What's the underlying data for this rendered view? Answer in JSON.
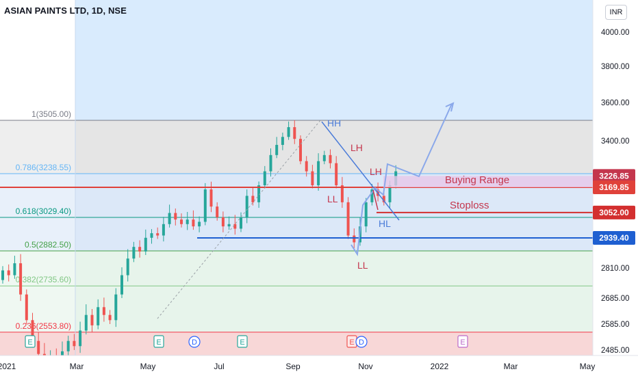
{
  "header": {
    "title": "ASIAN PAINTS LTD, 1D, NSE",
    "currency": "INR"
  },
  "colors": {
    "up": "#26a69a",
    "down": "#ef5350",
    "fib_top": "#e0e0e0",
    "fib_mid": "#d6e4f7",
    "fib_low": "#e3f2e8",
    "fib_red": "#f8d7d7",
    "blue_zone": "#d9ebfd",
    "annot_blue": "#4a7bd8",
    "annot_red": "#c4364d",
    "buy_fill": "#e7c7e8"
  },
  "chart_data": {
    "type": "candlestick",
    "title": "ASIAN PAINTS LTD, 1D, NSE",
    "price_axis": {
      "ticks": [
        4000.0,
        3800.0,
        3600.0,
        3400.0,
        2810.0,
        2685.0,
        2585.0,
        2485.0
      ],
      "tick_labels": [
        "4000.00",
        "3800.00",
        "3600.00",
        "3400.00",
        "2810.00",
        "2685.00",
        "2585.00",
        "2485.00"
      ],
      "price_tags": [
        {
          "value": 3226.85,
          "label": "3226.85",
          "color": "#c4364d"
        },
        {
          "value": 3169.85,
          "label": "3169.85",
          "color": "#e0413a"
        },
        {
          "value": 3052.0,
          "label": "3052.00",
          "color": "#d32f2f"
        },
        {
          "value": 2939.4,
          "label": "2939.40",
          "color": "#1e5fd1"
        }
      ]
    },
    "time_axis": {
      "labels": [
        "2021",
        "Mar",
        "May",
        "Jul",
        "Sep",
        "Nov",
        "2022",
        "Mar",
        "May"
      ]
    },
    "fib_levels": [
      {
        "ratio": "1",
        "value": 3505.0,
        "label": "1(3505.00)",
        "color": "#787b86"
      },
      {
        "ratio": "0.786",
        "value": 3238.55,
        "label": "0.786(3238.55)",
        "color": "#64b5f6"
      },
      {
        "ratio": "0.618",
        "value": 3029.4,
        "label": "0.618(3029.40)",
        "color": "#089981"
      },
      {
        "ratio": "0.5",
        "value": 2882.5,
        "label": "0.5(2882.50)",
        "color": "#43a047"
      },
      {
        "ratio": "0.382",
        "value": 2735.6,
        "label": "0.382(2735.60)",
        "color": "#81c784"
      },
      {
        "ratio": "0.236",
        "value": 2553.8,
        "label": "0.236(2553.80)",
        "color": "#f23645"
      }
    ],
    "annotations": [
      {
        "text": "HH",
        "color": "#4a7bd8"
      },
      {
        "text": "LH",
        "color": "#c4364d"
      },
      {
        "text": "LH",
        "color": "#c4364d"
      },
      {
        "text": "LL",
        "color": "#c4364d"
      },
      {
        "text": "LL",
        "color": "#c4364d"
      },
      {
        "text": "HL",
        "color": "#4a7bd8"
      },
      {
        "text": "Buying Range",
        "color": "#c4364d"
      },
      {
        "text": "Stoploss",
        "color": "#c4364d"
      }
    ],
    "event_markers": [
      {
        "letter": "E",
        "kind": "earnings"
      },
      {
        "letter": "E",
        "kind": "earnings"
      },
      {
        "letter": "D",
        "kind": "dividend"
      },
      {
        "letter": "E",
        "kind": "earnings"
      },
      {
        "letter": "E",
        "kind": "earnings"
      },
      {
        "letter": "D",
        "kind": "dividend"
      },
      {
        "letter": "E",
        "kind": "earnings"
      }
    ],
    "price_path": [
      [
        2760,
        2800
      ],
      [
        2800,
        2780
      ],
      [
        2780,
        2830
      ],
      [
        2830,
        2700
      ],
      [
        2700,
        2600
      ],
      [
        2600,
        2520
      ],
      [
        2520,
        2470
      ],
      [
        2470,
        2440
      ],
      [
        2440,
        2460
      ],
      [
        2460,
        2430
      ],
      [
        2430,
        2480
      ],
      [
        2480,
        2520
      ],
      [
        2520,
        2500
      ],
      [
        2500,
        2560
      ],
      [
        2560,
        2620
      ],
      [
        2620,
        2580
      ],
      [
        2580,
        2650
      ],
      [
        2650,
        2620
      ],
      [
        2620,
        2600
      ],
      [
        2600,
        2700
      ],
      [
        2700,
        2780
      ],
      [
        2780,
        2850
      ],
      [
        2850,
        2900
      ],
      [
        2900,
        2880
      ],
      [
        2880,
        2940
      ],
      [
        2940,
        2960
      ],
      [
        2960,
        2950
      ],
      [
        2950,
        3000
      ],
      [
        3000,
        3050
      ],
      [
        3050,
        3020
      ],
      [
        3020,
        3000
      ],
      [
        3000,
        3020
      ],
      [
        3020,
        2990
      ],
      [
        2990,
        3010
      ],
      [
        3010,
        3160
      ],
      [
        3160,
        3080
      ],
      [
        3080,
        3030
      ],
      [
        3030,
        2990
      ],
      [
        2990,
        3000
      ],
      [
        3000,
        2980
      ],
      [
        2980,
        3030
      ],
      [
        3030,
        3130
      ],
      [
        3130,
        3100
      ],
      [
        3100,
        3180
      ],
      [
        3180,
        3250
      ],
      [
        3250,
        3330
      ],
      [
        3330,
        3380
      ],
      [
        3380,
        3420
      ],
      [
        3420,
        3470
      ],
      [
        3470,
        3410
      ],
      [
        3410,
        3300
      ],
      [
        3300,
        3250
      ],
      [
        3250,
        3180
      ],
      [
        3180,
        3300
      ],
      [
        3300,
        3330
      ],
      [
        3330,
        3290
      ],
      [
        3290,
        3180
      ],
      [
        3180,
        3100
      ],
      [
        3100,
        2950
      ],
      [
        2950,
        2920
      ],
      [
        2920,
        2990
      ],
      [
        2990,
        3100
      ],
      [
        3100,
        3160
      ],
      [
        3160,
        3130
      ],
      [
        3130,
        3100
      ],
      [
        3100,
        3180
      ],
      [
        3180,
        3250
      ]
    ]
  }
}
